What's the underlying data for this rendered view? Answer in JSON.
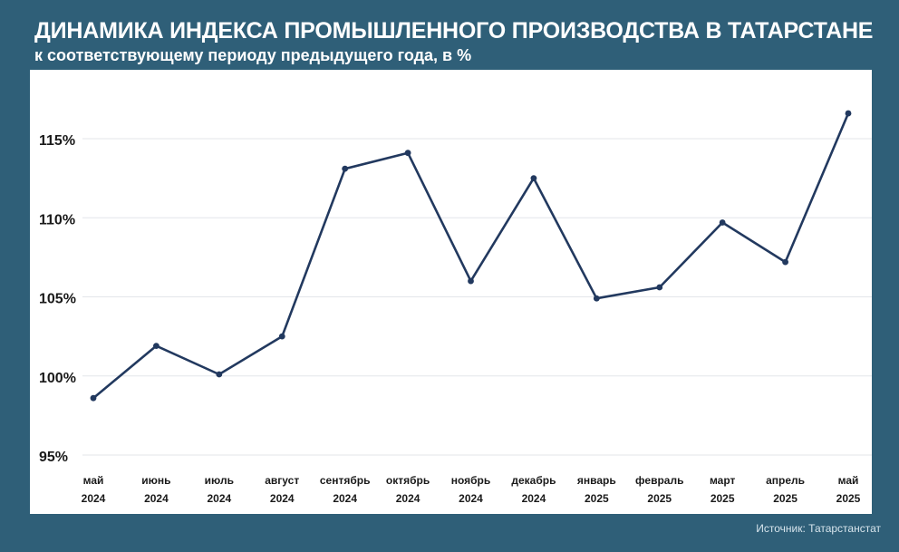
{
  "header": {
    "title": "ДИНАМИКА ИНДЕКСА ПРОМЫШЛЕННОГО ПРОИЗВОДСТВА В ТАТАРСТАНЕ",
    "subtitle": "к соответствующему периоду предыдущего года, в %"
  },
  "footer": {
    "source": "Источник: Татарстанстат"
  },
  "colors": {
    "background": "#2f5f78",
    "line": "#22395f",
    "grid": "#e3e6ea",
    "text": "#1a1a1a"
  },
  "chart_data": {
    "type": "line",
    "title": "ДИНАМИКА ИНДЕКСА ПРОМЫШЛЕННОГО ПРОИЗВОДСТВА В ТАТАРСТАНЕ",
    "subtitle": "к соответствующему периоду предыдущего года, в %",
    "categories": [
      [
        "май",
        "2024"
      ],
      [
        "июнь",
        "2024"
      ],
      [
        "июль",
        "2024"
      ],
      [
        "август",
        "2024"
      ],
      [
        "сентябрь",
        "2024"
      ],
      [
        "октябрь",
        "2024"
      ],
      [
        "ноябрь",
        "2024"
      ],
      [
        "декабрь",
        "2024"
      ],
      [
        "январь",
        "2025"
      ],
      [
        "февраль",
        "2025"
      ],
      [
        "март",
        "2025"
      ],
      [
        "апрель",
        "2025"
      ],
      [
        "май",
        "2025"
      ]
    ],
    "series": [
      {
        "values": [
          98.6,
          101.9,
          100.1,
          102.5,
          113.1,
          114.1,
          106.0,
          112.5,
          104.9,
          105.6,
          109.7,
          107.2,
          116.6
        ]
      }
    ],
    "yticks": [
      95,
      100,
      105,
      110,
      115
    ],
    "ytick_labels": [
      "95%",
      "100%",
      "105%",
      "110%",
      "115%"
    ],
    "ylim": [
      95,
      118
    ],
    "xlabel": "",
    "ylabel": "",
    "grid": "horizontal",
    "markers": true
  }
}
